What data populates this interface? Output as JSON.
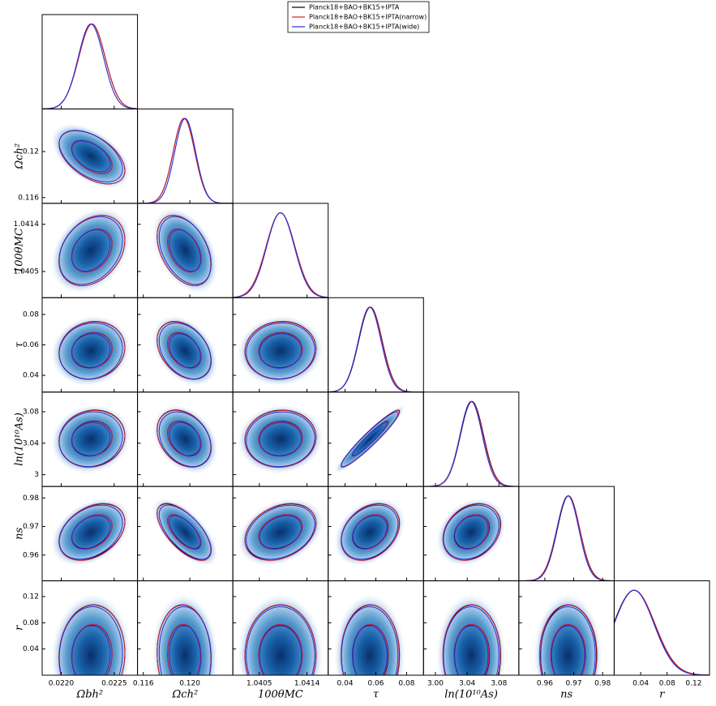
{
  "chart_data": {
    "type": "triangle",
    "series": [
      {
        "name": "Planck18+BAO+BK15+IPTA",
        "color": "#000000",
        "means": [
          0.02229,
          0.1195,
          1.0409,
          0.0565,
          3.046,
          0.9682,
          0.03
        ],
        "sigmas": [
          0.000125,
          0.00093,
          0.00027,
          0.0076,
          0.0145,
          0.0039,
          0.031
        ]
      },
      {
        "name": "Planck18+BAO+BK15+IPTA(narrow)",
        "color": "#d0203a",
        "means": [
          0.02229,
          0.1195,
          1.0409,
          0.0563,
          3.0455,
          0.9681,
          0.0305
        ],
        "sigmas": [
          0.000125,
          0.00093,
          0.00027,
          0.0076,
          0.0145,
          0.004,
          0.031
        ]
      },
      {
        "name": "Planck18+BAO+BK15+IPTA(wide)",
        "color": "#2b2bd6",
        "means": [
          0.02228,
          0.1196,
          1.0409,
          0.056,
          3.045,
          0.968,
          0.03
        ],
        "sigmas": [
          0.00012,
          0.0009,
          0.00026,
          0.0074,
          0.014,
          0.0038,
          0.03
        ]
      }
    ],
    "correlations": [
      [
        -0.5
      ],
      [
        0.3,
        -0.4
      ],
      [
        0.1,
        -0.35,
        0.05
      ],
      [
        0.1,
        -0.3,
        0.05,
        0.95
      ],
      [
        0.35,
        -0.65,
        0.3,
        0.3,
        0.25
      ],
      [
        0.05,
        -0.05,
        0.0,
        0.0,
        0.0,
        0.0
      ]
    ],
    "params": [
      {
        "label": "Ωbh²",
        "lim": [
          0.02182,
          0.02272
        ],
        "xticks": [
          {
            "value": 0.022,
            "label": "0.0220"
          },
          0.0225
        ]
      },
      {
        "label": "Ωch²",
        "lim": [
          0.1155,
          0.1237
        ],
        "xticks": [
          0.116,
          {
            "value": 0.12,
            "label": "0.120"
          }
        ],
        "yticks": [
          0.116,
          0.12
        ]
      },
      {
        "label": "100θMC",
        "lim": [
          1.04,
          1.0418
        ],
        "xticks": [
          1.0405,
          1.0414
        ],
        "yticks": [
          1.0405,
          1.0414
        ]
      },
      {
        "label": "τ",
        "lim": [
          0.029,
          0.091
        ],
        "xticks": [
          0.04,
          0.06,
          0.08
        ],
        "yticks": [
          0.04,
          0.06,
          0.08
        ]
      },
      {
        "label": "ln(10¹⁰As)",
        "lim": [
          2.985,
          3.105
        ],
        "xticks": [
          {
            "value": 3,
            "label": "3.00"
          },
          3.04,
          3.08
        ],
        "yticks": [
          3,
          3.04,
          3.08
        ]
      },
      {
        "label": "ns",
        "lim": [
          0.951,
          0.984
        ],
        "xticks": [
          0.96,
          0.97,
          0.98
        ],
        "yticks": [
          0.96,
          0.97,
          0.98
        ]
      },
      {
        "label": "r",
        "lim": [
          0,
          0.144
        ],
        "xticks": [
          0.04,
          0.08,
          0.12
        ],
        "yticks": [
          0.04,
          0.08,
          0.12
        ]
      }
    ]
  }
}
